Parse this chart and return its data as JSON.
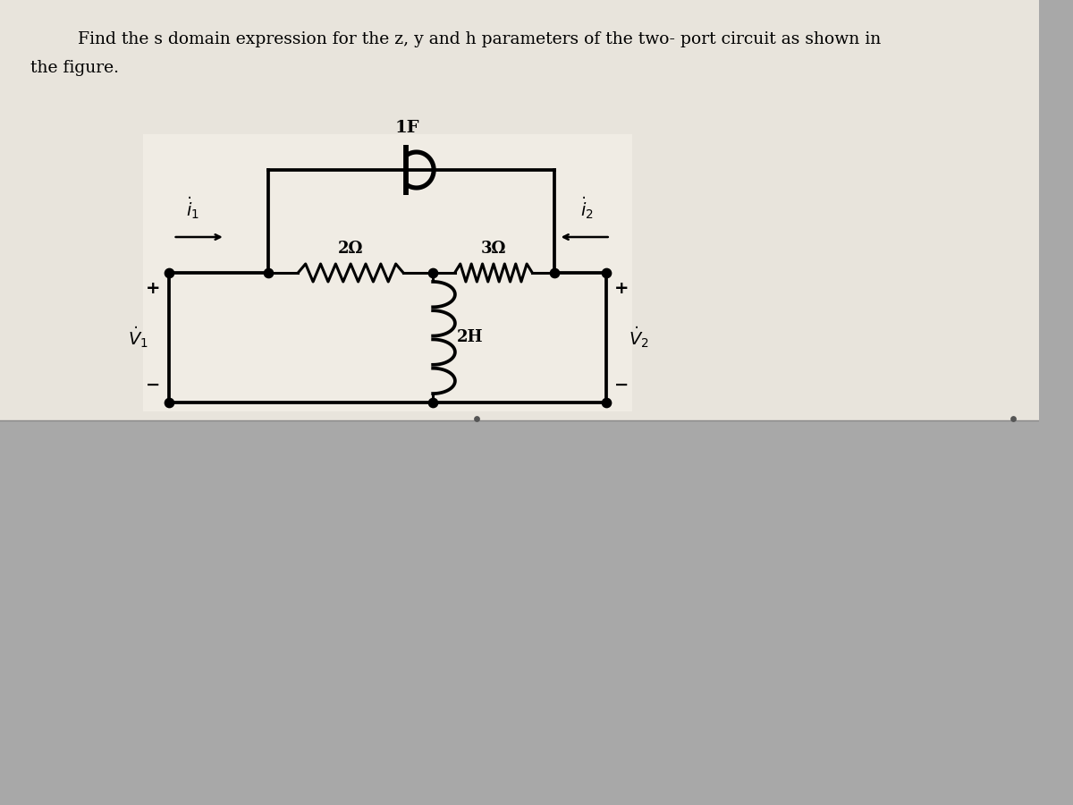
{
  "title_line1": "Find the s domain expression for the z, y and h parameters of the two- port circuit as shown in",
  "title_line2": "the figure.",
  "bg_top": "#e8e4dc",
  "bg_bottom": "#a8a8a8",
  "line_color": "#000000",
  "lw": 2.2,
  "cap_label": "1F",
  "r1_label": "2Ω",
  "r2_label": "3Ω",
  "ind_label": "2H",
  "i1_label": "i",
  "i1_sub": "1",
  "i2_label": "i",
  "i2_sub": "2",
  "v1_label": "V",
  "v1_sub": "1",
  "v2_label": "V",
  "v2_sub": "2"
}
